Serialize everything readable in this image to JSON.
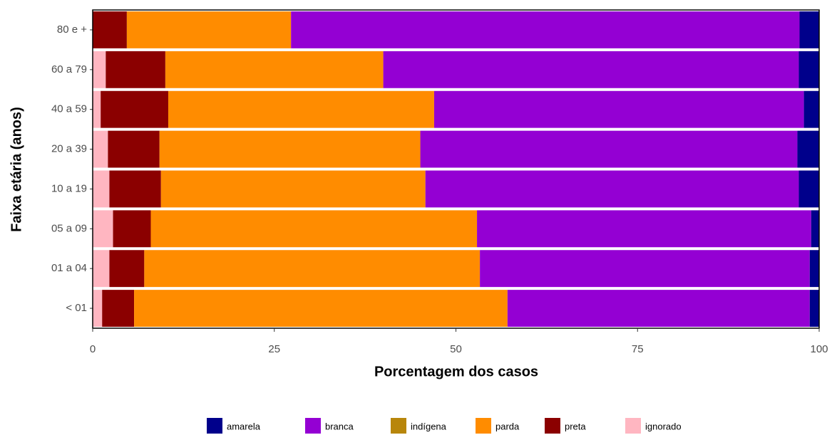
{
  "chart_data": {
    "type": "bar",
    "orientation": "horizontal",
    "stacked": true,
    "x_label": "Porcentagem dos casos",
    "y_label": "Faixa etária (anos)",
    "categories": [
      "< 01",
      "01 a 04",
      "05 a 09",
      "10 a 19",
      "20 a 39",
      "40 a 59",
      "60 a 79",
      "80 e +"
    ],
    "series": [
      {
        "name": "amarela",
        "color": "#00008b",
        "values": [
          1.3,
          1.3,
          1.1,
          2.8,
          3.0,
          2.1,
          2.8,
          2.7
        ]
      },
      {
        "name": "branca",
        "color": "#9400d3",
        "values": [
          41.6,
          45.4,
          46.0,
          51.4,
          51.9,
          50.9,
          57.2,
          70.0
        ]
      },
      {
        "name": "indígena",
        "color": "#b8860b",
        "values": [
          0,
          0,
          0,
          0,
          0,
          0,
          0,
          0
        ]
      },
      {
        "name": "parda",
        "color": "#ff8c00",
        "values": [
          51.4,
          46.2,
          44.9,
          36.4,
          35.9,
          36.6,
          30.0,
          22.6
        ]
      },
      {
        "name": "preta",
        "color": "#8b0000",
        "values": [
          4.4,
          4.8,
          5.2,
          7.1,
          7.1,
          9.3,
          8.2,
          4.7
        ]
      },
      {
        "name": "ignorado",
        "color": "#ffb6c1",
        "values": [
          1.3,
          2.3,
          2.8,
          2.3,
          2.1,
          1.1,
          1.8,
          0
        ]
      }
    ],
    "xlim": [
      0,
      100
    ],
    "xticks": [
      0,
      25,
      50,
      75,
      100
    ],
    "legend": "bottom"
  }
}
